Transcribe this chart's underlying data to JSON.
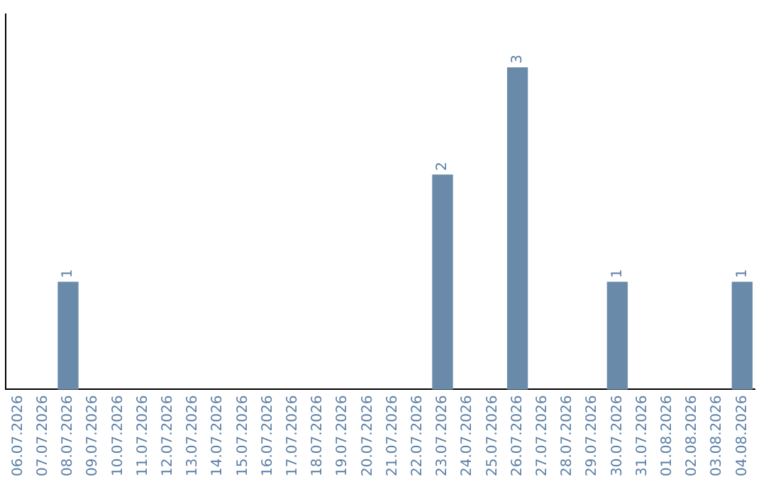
{
  "chart_data": {
    "type": "bar",
    "categories": [
      "06.07.2026",
      "07.07.2026",
      "08.07.2026",
      "09.07.2026",
      "10.07.2026",
      "11.07.2026",
      "12.07.2026",
      "13.07.2026",
      "14.07.2026",
      "15.07.2026",
      "16.07.2026",
      "17.07.2026",
      "18.07.2026",
      "19.07.2026",
      "20.07.2026",
      "21.07.2026",
      "22.07.2026",
      "23.07.2026",
      "24.07.2026",
      "25.07.2026",
      "26.07.2026",
      "27.07.2026",
      "28.07.2026",
      "29.07.2026",
      "30.07.2026",
      "31.07.2026",
      "01.08.2026",
      "02.08.2026",
      "03.08.2026",
      "04.08.2026"
    ],
    "values": [
      null,
      null,
      1,
      null,
      null,
      null,
      null,
      null,
      null,
      null,
      null,
      null,
      null,
      null,
      null,
      null,
      null,
      2,
      null,
      null,
      3,
      null,
      null,
      null,
      1,
      null,
      null,
      null,
      null,
      1
    ],
    "color": "#6a8aaa",
    "data_labels": true,
    "grid": false,
    "legend": false
  }
}
